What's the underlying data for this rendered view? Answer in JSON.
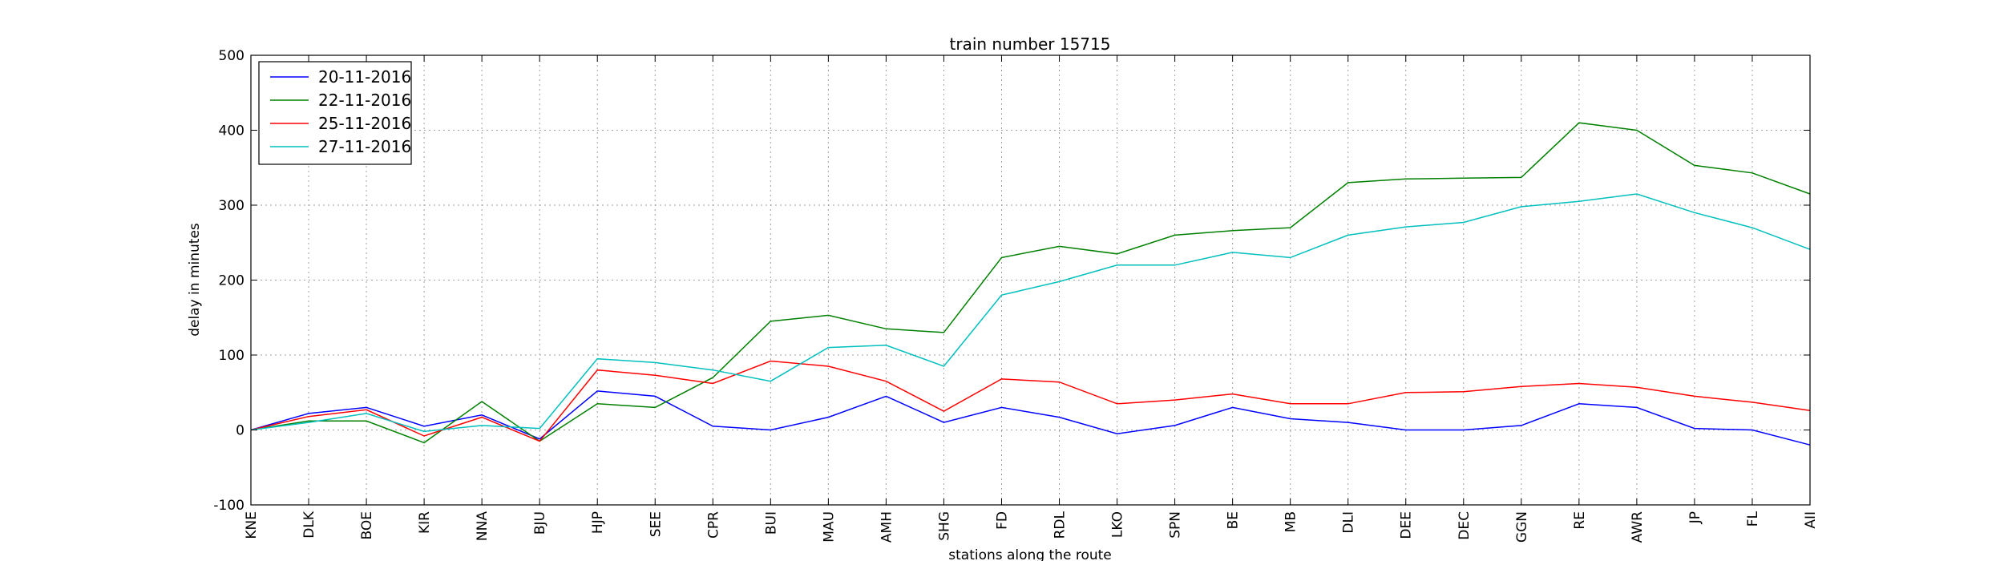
{
  "chart_data": {
    "type": "line",
    "title": "train number 15715",
    "xlabel": "stations along the route",
    "ylabel": "delay in minutes",
    "ylim": [
      -100,
      500
    ],
    "yticks": [
      -100,
      0,
      100,
      200,
      300,
      400,
      500
    ],
    "grid": true,
    "legend_position": "top-left",
    "categories": [
      "KNE",
      "DLK",
      "BOE",
      "KIR",
      "NNA",
      "BJU",
      "HJP",
      "SEE",
      "CPR",
      "BUI",
      "MAU",
      "AMH",
      "SHG",
      "FD",
      "RDL",
      "LKO",
      "SPN",
      "BE",
      "MB",
      "DLI",
      "DEE",
      "DEC",
      "GGN",
      "RE",
      "AWR",
      "JP",
      "FL",
      "AII"
    ],
    "series": [
      {
        "name": "20-11-2016",
        "color": "#0000ff",
        "values": [
          0,
          22,
          30,
          5,
          20,
          -12,
          52,
          45,
          5,
          0,
          17,
          45,
          10,
          30,
          17,
          -5,
          6,
          30,
          15,
          10,
          0,
          0,
          6,
          35,
          30,
          2,
          0,
          -20
        ]
      },
      {
        "name": "22-11-2016",
        "color": "#008000",
        "values": [
          0,
          12,
          12,
          -17,
          38,
          -15,
          35,
          30,
          70,
          145,
          153,
          135,
          130,
          230,
          245,
          235,
          260,
          266,
          270,
          330,
          335,
          336,
          337,
          410,
          400,
          353,
          343,
          315
        ]
      },
      {
        "name": "25-11-2016",
        "color": "#ff0000",
        "values": [
          0,
          18,
          27,
          -8,
          17,
          -15,
          80,
          73,
          62,
          92,
          85,
          65,
          25,
          68,
          64,
          35,
          40,
          48,
          35,
          35,
          50,
          51,
          58,
          62,
          57,
          45,
          37,
          26
        ]
      },
      {
        "name": "27-11-2016",
        "color": "#00bfbf",
        "values": [
          0,
          10,
          22,
          -2,
          6,
          2,
          95,
          90,
          80,
          65,
          110,
          113,
          85,
          180,
          198,
          220,
          220,
          237,
          230,
          260,
          271,
          277,
          298,
          305,
          315,
          290,
          270,
          241
        ]
      }
    ]
  }
}
